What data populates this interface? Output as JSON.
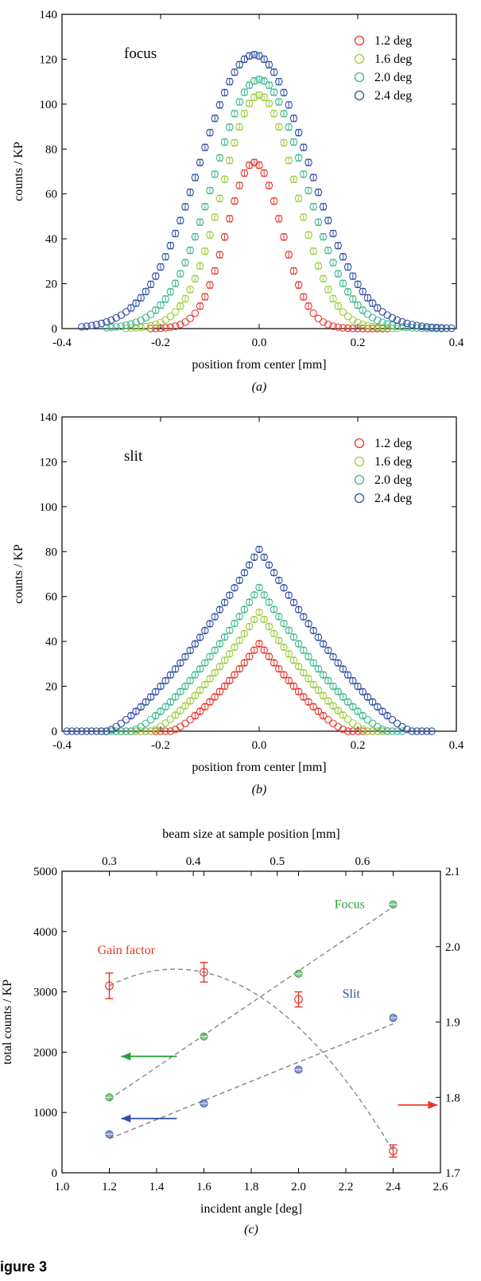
{
  "figure_label": "igure 3",
  "chart_data": [
    {
      "id": "a",
      "type": "scatter",
      "panel_label": "(a)",
      "title": "focus",
      "xlabel": "position from center [mm]",
      "ylabel": "counts / KP",
      "xlim": [
        -0.4,
        0.4
      ],
      "ylim": [
        0,
        140
      ],
      "xticks": [
        -0.4,
        -0.2,
        0.0,
        0.2,
        0.4
      ],
      "xtick_labels": [
        "-0.4",
        "-0.2",
        "0.0",
        "0.2",
        "0.4"
      ],
      "yticks": [
        0,
        20,
        40,
        60,
        80,
        100,
        120,
        140
      ],
      "ytick_labels": [
        "0",
        "20",
        "40",
        "60",
        "80",
        "100",
        "120",
        "140"
      ],
      "grid": false,
      "legend_position": "top-right",
      "series": [
        {
          "name": "1.2 deg",
          "color": "#e8352a",
          "peak": 74,
          "center": -0.01,
          "sigma": 0.055,
          "xmin": -0.22,
          "xmax": 0.26,
          "step": 0.01,
          "base": 0
        },
        {
          "name": "1.6 deg",
          "color": "#9ccc3a",
          "peak": 104,
          "center": 0.0,
          "sigma": 0.074,
          "xmin": -0.27,
          "xmax": 0.28,
          "step": 0.01,
          "base": 0
        },
        {
          "name": "2.0 deg",
          "color": "#3cb88e",
          "peak": 111,
          "center": 0.0,
          "sigma": 0.092,
          "xmin": -0.31,
          "xmax": 0.37,
          "step": 0.01,
          "base": 0
        },
        {
          "name": "2.4 deg",
          "color": "#2f4fa5",
          "peak": 122,
          "center": -0.01,
          "sigma": 0.11,
          "xmin": -0.36,
          "xmax": 0.4,
          "step": 0.01,
          "base": 0
        }
      ]
    },
    {
      "id": "b",
      "type": "scatter",
      "panel_label": "(b)",
      "title": "slit",
      "xlabel": "position from center [mm]",
      "ylabel": "counts / KP",
      "xlim": [
        -0.4,
        0.4
      ],
      "ylim": [
        0,
        140
      ],
      "xticks": [
        -0.4,
        -0.2,
        0.0,
        0.2,
        0.4
      ],
      "xtick_labels": [
        "-0.4",
        "-0.2",
        "0.0",
        "0.2",
        "0.4"
      ],
      "yticks": [
        0,
        20,
        40,
        60,
        80,
        100,
        120,
        140
      ],
      "ytick_labels": [
        "0",
        "20",
        "40",
        "60",
        "80",
        "100",
        "120",
        "140"
      ],
      "grid": false,
      "legend_position": "top-right",
      "series": [
        {
          "name": "1.2 deg",
          "color": "#e8352a",
          "peak": 39,
          "halfwidth": 0.18,
          "xmin": -0.28,
          "xmax": 0.26,
          "step": 0.01
        },
        {
          "name": "1.6 deg",
          "color": "#9ccc3a",
          "peak": 53,
          "halfwidth": 0.22,
          "xmin": -0.3,
          "xmax": 0.26,
          "step": 0.01
        },
        {
          "name": "2.0 deg",
          "color": "#3cb88e",
          "peak": 64,
          "halfwidth": 0.26,
          "xmin": -0.32,
          "xmax": 0.29,
          "step": 0.01
        },
        {
          "name": "2.4 deg",
          "color": "#2f4fa5",
          "peak": 81,
          "halfwidth": 0.31,
          "xmin": -0.4,
          "xmax": 0.35,
          "step": 0.01
        }
      ]
    },
    {
      "id": "c",
      "type": "scatter",
      "panel_label": "(c)",
      "xlabel": "incident angle [deg]",
      "ylabel": "total counts / KP",
      "top_xlabel": "beam size at sample position [mm]",
      "xlim": [
        1.0,
        2.6
      ],
      "ylim": [
        0,
        5000
      ],
      "y2lim": [
        1.7,
        2.1
      ],
      "xticks": [
        1.0,
        1.2,
        1.4,
        1.6,
        1.8,
        2.0,
        2.2,
        2.4,
        2.6
      ],
      "xtick_labels": [
        "1.0",
        "1.2",
        "1.4",
        "1.6",
        "1.8",
        "2.0",
        "2.2",
        "2.4",
        "2.6"
      ],
      "yticks": [
        0,
        1000,
        2000,
        3000,
        4000,
        5000
      ],
      "ytick_labels": [
        "0",
        "1000",
        "2000",
        "3000",
        "4000",
        "5000"
      ],
      "y2ticks": [
        1.7,
        1.8,
        1.9,
        2.0,
        2.1
      ],
      "y2tick_labels": [
        "1.7",
        "1.8",
        "1.9",
        "2.0",
        "2.1"
      ],
      "top_ticks": [
        {
          "label": "0.3",
          "x": 1.2
        },
        {
          "label": "0.4",
          "x": 1.555
        },
        {
          "label": "0.5",
          "x": 1.91
        },
        {
          "label": "0.6",
          "x": 2.27
        }
      ],
      "grid": false,
      "series": [
        {
          "name": "Focus",
          "axis": "left",
          "color": "#2e9e3a",
          "x": [
            1.2,
            1.6,
            2.0,
            2.4
          ],
          "y": [
            1250,
            2260,
            3300,
            4450
          ],
          "fit": "linear"
        },
        {
          "name": "Slit",
          "axis": "left",
          "color": "#2f4fa5",
          "x": [
            1.2,
            1.6,
            2.0,
            2.4
          ],
          "y": [
            640,
            1150,
            1710,
            2570
          ],
          "fit": "linear"
        },
        {
          "name": "Gain factor",
          "axis": "right",
          "color": "#e8352a",
          "x": [
            1.2,
            1.6,
            2.0,
            2.4
          ],
          "y": [
            1.948,
            1.966,
            1.93,
            1.729
          ],
          "err": [
            0.017,
            0.013,
            0.01,
            0.008
          ],
          "fit": "quadratic"
        }
      ],
      "arrows": [
        {
          "series": "Focus",
          "direction": "left",
          "x": 1.25,
          "y": 1930
        },
        {
          "series": "Slit",
          "direction": "left",
          "x": 1.25,
          "y": 900
        },
        {
          "series": "Gain factor",
          "direction": "right",
          "x": 2.42,
          "y": 1.79
        }
      ]
    }
  ]
}
